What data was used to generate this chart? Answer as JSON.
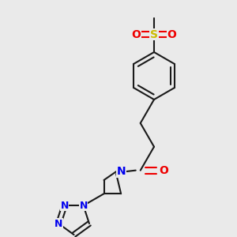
{
  "background_color": "#eaeaea",
  "bond_color": "#1a1a1a",
  "N_color": "#0000ee",
  "O_color": "#ee0000",
  "S_color": "#ccbb00",
  "line_width": 1.5,
  "figsize": [
    3.0,
    3.0
  ],
  "dpi": 100,
  "xlim": [
    0,
    10
  ],
  "ylim": [
    0,
    10
  ]
}
